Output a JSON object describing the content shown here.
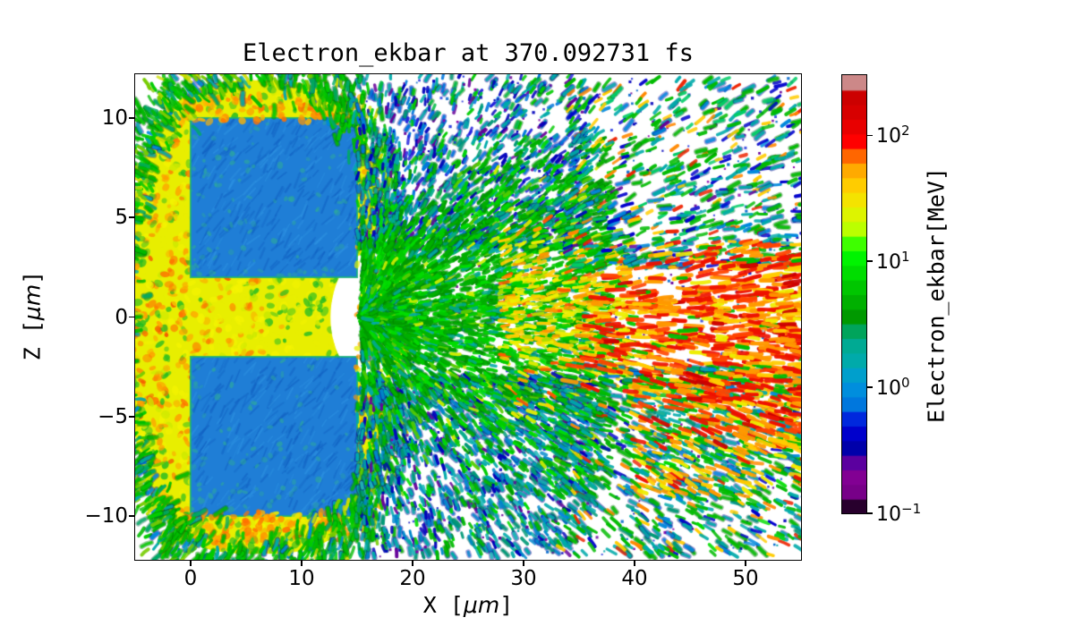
{
  "figure": {
    "background": "#ffffff"
  },
  "chart_data": {
    "type": "scatter",
    "title": "Electron_ekbar at 370.092731 fs",
    "time_fs": 370.092731,
    "xlabel": "X [μm]",
    "ylabel": "Z [μm]",
    "xlabel_parts": {
      "name": "X",
      "bracket_open": "[",
      "bracket_close": "]",
      "unit": "μm"
    },
    "ylabel_parts": {
      "name": "Z",
      "bracket_open": "[",
      "bracket_close": "]",
      "unit": "μm"
    },
    "xlim": [
      -5,
      55
    ],
    "ylim": [
      -12.2,
      12.2
    ],
    "grid": false,
    "x_ticks": [
      {
        "value": 0,
        "label": "0"
      },
      {
        "value": 10,
        "label": "10"
      },
      {
        "value": 20,
        "label": "20"
      },
      {
        "value": 30,
        "label": "30"
      },
      {
        "value": 40,
        "label": "40"
      },
      {
        "value": 50,
        "label": "50"
      }
    ],
    "y_ticks": [
      {
        "value": 10,
        "label": "10"
      },
      {
        "value": 5,
        "label": "5"
      },
      {
        "value": 0,
        "label": "0"
      },
      {
        "value": -5,
        "label": "−5"
      },
      {
        "value": -10,
        "label": "−10"
      }
    ],
    "colorbar": {
      "label": "Electron_ekbar[MeV]",
      "scale": "log",
      "vmin": 0.1,
      "vmax": 300,
      "colormap": "nipy_spectral",
      "n_bands": 30,
      "ticks": [
        {
          "value": 100,
          "mantissa": "10",
          "exponent": "2"
        },
        {
          "value": 10,
          "mantissa": "10",
          "exponent": "1"
        },
        {
          "value": 1,
          "mantissa": "10",
          "exponent": "0"
        },
        {
          "value": 0.1,
          "mantissa": "10",
          "exponent": "−1"
        }
      ],
      "stops": [
        [
          0,
          "#000000"
        ],
        [
          0.05,
          "#770088"
        ],
        [
          0.1,
          "#880099"
        ],
        [
          0.15,
          "#0000aa"
        ],
        [
          0.2,
          "#0000dd"
        ],
        [
          0.25,
          "#0077dd"
        ],
        [
          0.3,
          "#0099dd"
        ],
        [
          0.35,
          "#00aaaa"
        ],
        [
          0.4,
          "#00aa88"
        ],
        [
          0.45,
          "#009900"
        ],
        [
          0.5,
          "#00bb00"
        ],
        [
          0.55,
          "#00dd00"
        ],
        [
          0.6,
          "#00ff00"
        ],
        [
          0.65,
          "#bbff00"
        ],
        [
          0.7,
          "#eeee00"
        ],
        [
          0.75,
          "#ffcc00"
        ],
        [
          0.8,
          "#ff9900"
        ],
        [
          0.85,
          "#ff0000"
        ],
        [
          0.9,
          "#dd0000"
        ],
        [
          0.95,
          "#cc0000"
        ],
        [
          1,
          "#cccccc"
        ]
      ]
    },
    "structures": {
      "target_blocks": [
        {
          "x_um": [
            0,
            15
          ],
          "z_um": [
            2,
            10
          ],
          "mean_energy_mev": 1,
          "color": "#1f7ed6"
        },
        {
          "x_um": [
            0,
            15
          ],
          "z_um": [
            -10,
            -2
          ],
          "mean_energy_mev": 1,
          "color": "#1f7ed6"
        }
      ],
      "plasma_halo": {
        "x_um": [
          -5,
          17.5
        ],
        "z_um": [
          -11.8,
          11.8
        ],
        "energy_mev": [
          20,
          80
        ],
        "colors": [
          "#e8ee00",
          "#ff9500"
        ]
      },
      "channel_mouth": {
        "x_um": [
          15,
          20
        ],
        "z_um": [
          -3,
          3
        ],
        "energy_mev": [
          10,
          30
        ]
      },
      "green_spray": {
        "x_um": [
          15,
          55
        ],
        "z_um": [
          -12,
          12
        ],
        "energy_mev": [
          0.5,
          12
        ]
      },
      "high_energy_beam": {
        "x_um": [
          34,
          55
        ],
        "z_um": [
          -7,
          4
        ],
        "energy_mev": [
          60,
          300
        ],
        "colors": [
          "#ffcc00",
          "#ff9900",
          "#ee1100"
        ]
      }
    },
    "render": {
      "seed": 1337,
      "origin": {
        "x": 15,
        "z": 0
      },
      "blob": {
        "cx": 6.1,
        "cz": 0,
        "rx": 11.6,
        "rz": 11.9,
        "e": 3,
        "mouth": {
          "cx": 16.5,
          "cz": 0,
          "rx": 3.9,
          "rz": 3.3
        },
        "base": "#e8ee00",
        "noise": 2600,
        "rules": {
          "orange_p0": 0.72,
          "orange_fade": 16,
          "deep_frac": 0.32,
          "red_p": 0.025,
          "red_xmax": 7,
          "green_base": 0.06,
          "green_edge": 0.4,
          "channel_green": 0.3,
          "channel_x": [
            7,
            17.3
          ],
          "channel_z": 2.6,
          "yg_p": 0.12
        },
        "colors": {
          "orange": "#ff9d00",
          "deep": "#ff7000",
          "red": "#f54400",
          "green": "#22bb22",
          "yg": "#c8e800",
          "yellow1": "#e8ee00",
          "yellow2": "#f4f400"
        }
      },
      "squares": {
        "base": "#1f7ed6",
        "dark": "#1160c2",
        "light": "#2e93e2",
        "teal": "#2da89c",
        "edge": "#17b07a",
        "strokes": 300,
        "spots": 100
      },
      "skirts": [
        {
          "n": 120,
          "type": "dot",
          "x": [
            -1,
            15.8
          ],
          "zr": [
            9.8,
            11.2
          ],
          "size": [
            2.5,
            5.5
          ],
          "alpha": [
            0.6,
            0.9
          ],
          "palette": [
            [
              "#ff9500",
              0.45
            ],
            [
              "#ffb300",
              0.3
            ],
            [
              "#ff7000",
              0.1
            ],
            [
              "#e8ee00",
              0.15
            ]
          ]
        },
        {
          "n": 120,
          "type": "dot",
          "x": [
            -1,
            15.8
          ],
          "zr": [
            -11.2,
            -9.8
          ],
          "size": [
            2.5,
            5.5
          ],
          "alpha": [
            0.6,
            0.9
          ],
          "palette": [
            [
              "#ff9500",
              0.45
            ],
            [
              "#ffb300",
              0.3
            ],
            [
              "#ff7000",
              0.1
            ],
            [
              "#e8ee00",
              0.15
            ]
          ]
        },
        {
          "n": 90,
          "type": "dot",
          "x": [
            14.9,
            17.3
          ],
          "zr": [
            -9.7,
            9.7
          ],
          "size": [
            2.5,
            5
          ],
          "alpha": [
            0.55,
            0.85
          ],
          "palette": [
            [
              "#ff9500",
              0.4
            ],
            [
              "#ffb300",
              0.25
            ],
            [
              "#e8ee00",
              0.35
            ]
          ]
        }
      ],
      "ring": {
        "n": 1500,
        "spread": 1.4,
        "len": [
          6,
          14
        ],
        "w": [
          3,
          4.2
        ],
        "alpha": [
          0.75,
          1
        ],
        "rimP": 0.45,
        "palette": [
          [
            "#00bb00",
            0.4,
            "#007700"
          ],
          [
            "#00cc00",
            0.18,
            "#007700"
          ],
          [
            "#00aa66",
            0.12,
            "#006644"
          ],
          [
            "#00aaaa",
            0.1,
            "#111199"
          ],
          [
            "#77cc00",
            0.1
          ],
          [
            "#0088dd",
            0.05,
            "#1111aa"
          ],
          [
            "#ccdd00",
            0.05
          ]
        ]
      },
      "fields": [
        {
          "n": 1400,
          "type": "cap",
          "x": [
            15,
            36
          ],
          "xbias": 1,
          "z": {
            "kind": "pow",
            "from": 3.5,
            "span": 8.7,
            "pow": 1.7
          },
          "len": [
            4,
            9
          ],
          "w": [
            2.8,
            3.8
          ],
          "alpha": [
            0.8,
            1
          ],
          "rimP": 0.55,
          "jit": 0.35,
          "palette": [
            [
              "#00aaaa",
              0.24,
              "#111199"
            ],
            [
              "#0077dd",
              0.2,
              "#1111aa"
            ],
            [
              "#0000bb",
              0.14
            ],
            [
              "#00bb44",
              0.12,
              "#007700"
            ],
            [
              "#00cc00",
              0.12,
              "#007700"
            ],
            [
              "#660099",
              0.06
            ],
            [
              "#2222dd",
              0.06
            ],
            [
              "#009977",
              0.06,
              "#006655"
            ]
          ]
        },
        {
          "n": 1600,
          "type": "cap",
          "x": [
            15,
            36
          ],
          "xbias": 1,
          "z": {
            "kind": "pow",
            "from": -3,
            "span": -9,
            "pow": 1.5
          },
          "len": [
            4,
            10
          ],
          "w": [
            2.8,
            4
          ],
          "alpha": [
            0.8,
            1
          ],
          "rimP": 0.5,
          "jit": 0.35,
          "palette": [
            [
              "#00aaaa",
              0.28,
              "#111199"
            ],
            [
              "#0088cc",
              0.16,
              "#1111aa"
            ],
            [
              "#009977",
              0.14,
              "#006655"
            ],
            [
              "#00bb00",
              0.16,
              "#007700"
            ],
            [
              "#0000bb",
              0.1
            ],
            [
              "#00dd00",
              0.05
            ],
            [
              "#660099",
              0.05
            ],
            [
              "#22bbbb",
              0.06,
              "#111199"
            ]
          ]
        },
        {
          "n": 750,
          "type": "dot",
          "x": [
            15,
            55.5
          ],
          "zr": [
            -12.1,
            12.1
          ],
          "skipBlob": true,
          "size": [
            1.8,
            3.4
          ],
          "alpha": [
            0.8,
            1
          ],
          "palette": [
            [
              "#0000bb",
              0.26
            ],
            [
              "#2233dd",
              0.2
            ],
            [
              "#660099",
              0.18
            ],
            [
              "#8800aa",
              0.1
            ],
            [
              "#0066cc",
              0.16
            ],
            [
              "#00aaaa",
              0.1
            ]
          ]
        },
        {
          "n": 3200,
          "type": "cap",
          "x": [
            15.5,
            38
          ],
          "xbias": 1.6,
          "z": {
            "kind": "gauss",
            "mean": 0.6,
            "s0": 1.6,
            "sgrow": 0.18,
            "ref": 15.5,
            "clamp": [
              -9,
              9
            ]
          },
          "len": [
            5,
            11
          ],
          "w": [
            3,
            4.3
          ],
          "alpha": [
            0.85,
            1
          ],
          "rimP": 0.35,
          "jit": 0.3,
          "curve": true,
          "palette": [
            [
              "#00b000",
              0.28,
              "#007700"
            ],
            [
              "#00cc00",
              0.22
            ],
            [
              "#009900",
              0.16
            ],
            [
              "#00dd00",
              0.1
            ],
            [
              "#00aa88",
              0.1,
              "#006666"
            ],
            [
              "#55cc00",
              0.06
            ],
            [
              "#ccee00",
              0.04
            ],
            [
              "#00aaaa",
              0.04,
              "#111199"
            ]
          ]
        },
        {
          "n": 500,
          "type": "cap",
          "x": [
            28,
            40
          ],
          "xbias": 1,
          "z": {
            "kind": "gauss",
            "mean": 0.4,
            "s0": 2.2,
            "sgrow": 0.05,
            "ref": 28,
            "clamp": [
              -5,
              5
            ]
          },
          "len": [
            6,
            13
          ],
          "w": [
            3.2,
            4.4
          ],
          "alpha": [
            0.85,
            1
          ],
          "rimP": 0.2,
          "jit": 0.3,
          "palette": [
            [
              "#eeee00",
              0.28
            ],
            [
              "#ffcc00",
              0.22
            ],
            [
              "#ff9900",
              0.14
            ],
            [
              "#aadd00",
              0.12
            ],
            [
              "#00cc00",
              0.18
            ],
            [
              "#ff5500",
              0.06
            ]
          ]
        },
        {
          "n": 700,
          "type": "cap",
          "x": [
            34,
            55.5
          ],
          "xbias": 1,
          "z": {
            "kind": "pow",
            "from": 2.5,
            "span": 9.5,
            "pow": 1.4
          },
          "len": [
            6,
            13
          ],
          "w": [
            3,
            4.2
          ],
          "alpha": [
            0.8,
            1
          ],
          "rimP": 0.4,
          "jit": 0.3,
          "palette": [
            [
              "#00bb00",
              0.32,
              "#007700"
            ],
            [
              "#00aaaa",
              0.22,
              "#111199"
            ],
            [
              "#0088dd",
              0.1,
              "#1111aa"
            ],
            [
              "#0000cc",
              0.1
            ],
            [
              "#00cc66",
              0.08,
              "#007744"
            ],
            [
              "#ffcc00",
              0.07
            ],
            [
              "#ff8800",
              0.05
            ],
            [
              "#ee2200",
              0.04
            ],
            [
              "#660099",
              0.02
            ]
          ]
        },
        {
          "n": 900,
          "type": "cap",
          "x": [
            33,
            55.5
          ],
          "xbias": 1,
          "z": {
            "kind": "pow",
            "from": -2.5,
            "span": -9.5,
            "pow": 1.3
          },
          "len": [
            6,
            13
          ],
          "w": [
            3,
            4.2
          ],
          "alpha": [
            0.8,
            1
          ],
          "rimP": 0.4,
          "jit": 0.3,
          "palette": [
            [
              "#00bb00",
              0.3,
              "#007700"
            ],
            [
              "#00aaaa",
              0.26,
              "#111199"
            ],
            [
              "#009977",
              0.1,
              "#006655"
            ],
            [
              "#0088dd",
              0.08,
              "#1111aa"
            ],
            [
              "#0000cc",
              0.06
            ],
            [
              "#ffcc00",
              0.08
            ],
            [
              "#ff8800",
              0.05
            ],
            [
              "#ee2200",
              0.03
            ],
            [
              "#00dd00",
              0.04
            ]
          ]
        },
        {
          "n": 280,
          "type": "cap",
          "x": [
            40,
            55.5
          ],
          "xbias": 1,
          "z": {
            "kind": "pow",
            "from": -3.2,
            "span": -5.8,
            "pow": 1.2
          },
          "len": [
            7,
            15
          ],
          "w": [
            3.2,
            4.6
          ],
          "alpha": [
            0.85,
            1
          ],
          "rimP": 0.1,
          "jit": 0.25,
          "palette": [
            [
              "#ff9900",
              0.28
            ],
            [
              "#ffcc00",
              0.22
            ],
            [
              "#eeee00",
              0.14
            ],
            [
              "#ee1100",
              0.12
            ],
            [
              "#00bb00",
              0.14
            ],
            [
              "#00aaaa",
              0.1
            ]
          ]
        },
        {
          "n": 850,
          "type": "cap",
          "x": [
            34,
            55.6
          ],
          "xbias": 0.55,
          "z": {
            "kind": "gauss",
            "mean": -0.8,
            "s0": 1.2,
            "sgrow": 0.13,
            "ref": 34,
            "clamp": [
              -6.5,
              3.8
            ]
          },
          "len": [
            9,
            20
          ],
          "w": [
            3.6,
            5
          ],
          "alpha": [
            0.9,
            1
          ],
          "rimP": 0,
          "jit": 0.2,
          "palette": [
            [
              "#ee1100",
              0.3
            ],
            [
              "#ff4400",
              0.16
            ],
            [
              "#ff9900",
              0.2
            ],
            [
              "#ffcc00",
              0.14
            ],
            [
              "#eeee00",
              0.08
            ],
            [
              "#cc0000",
              0.06
            ],
            [
              "#00bb00",
              0.06
            ]
          ]
        }
      ],
      "gray_specks": {
        "color": "#bbbbbb",
        "size": 3,
        "points": [
          [
            51.6,
            -0.7
          ],
          [
            53.2,
            2.1
          ]
        ]
      }
    }
  }
}
